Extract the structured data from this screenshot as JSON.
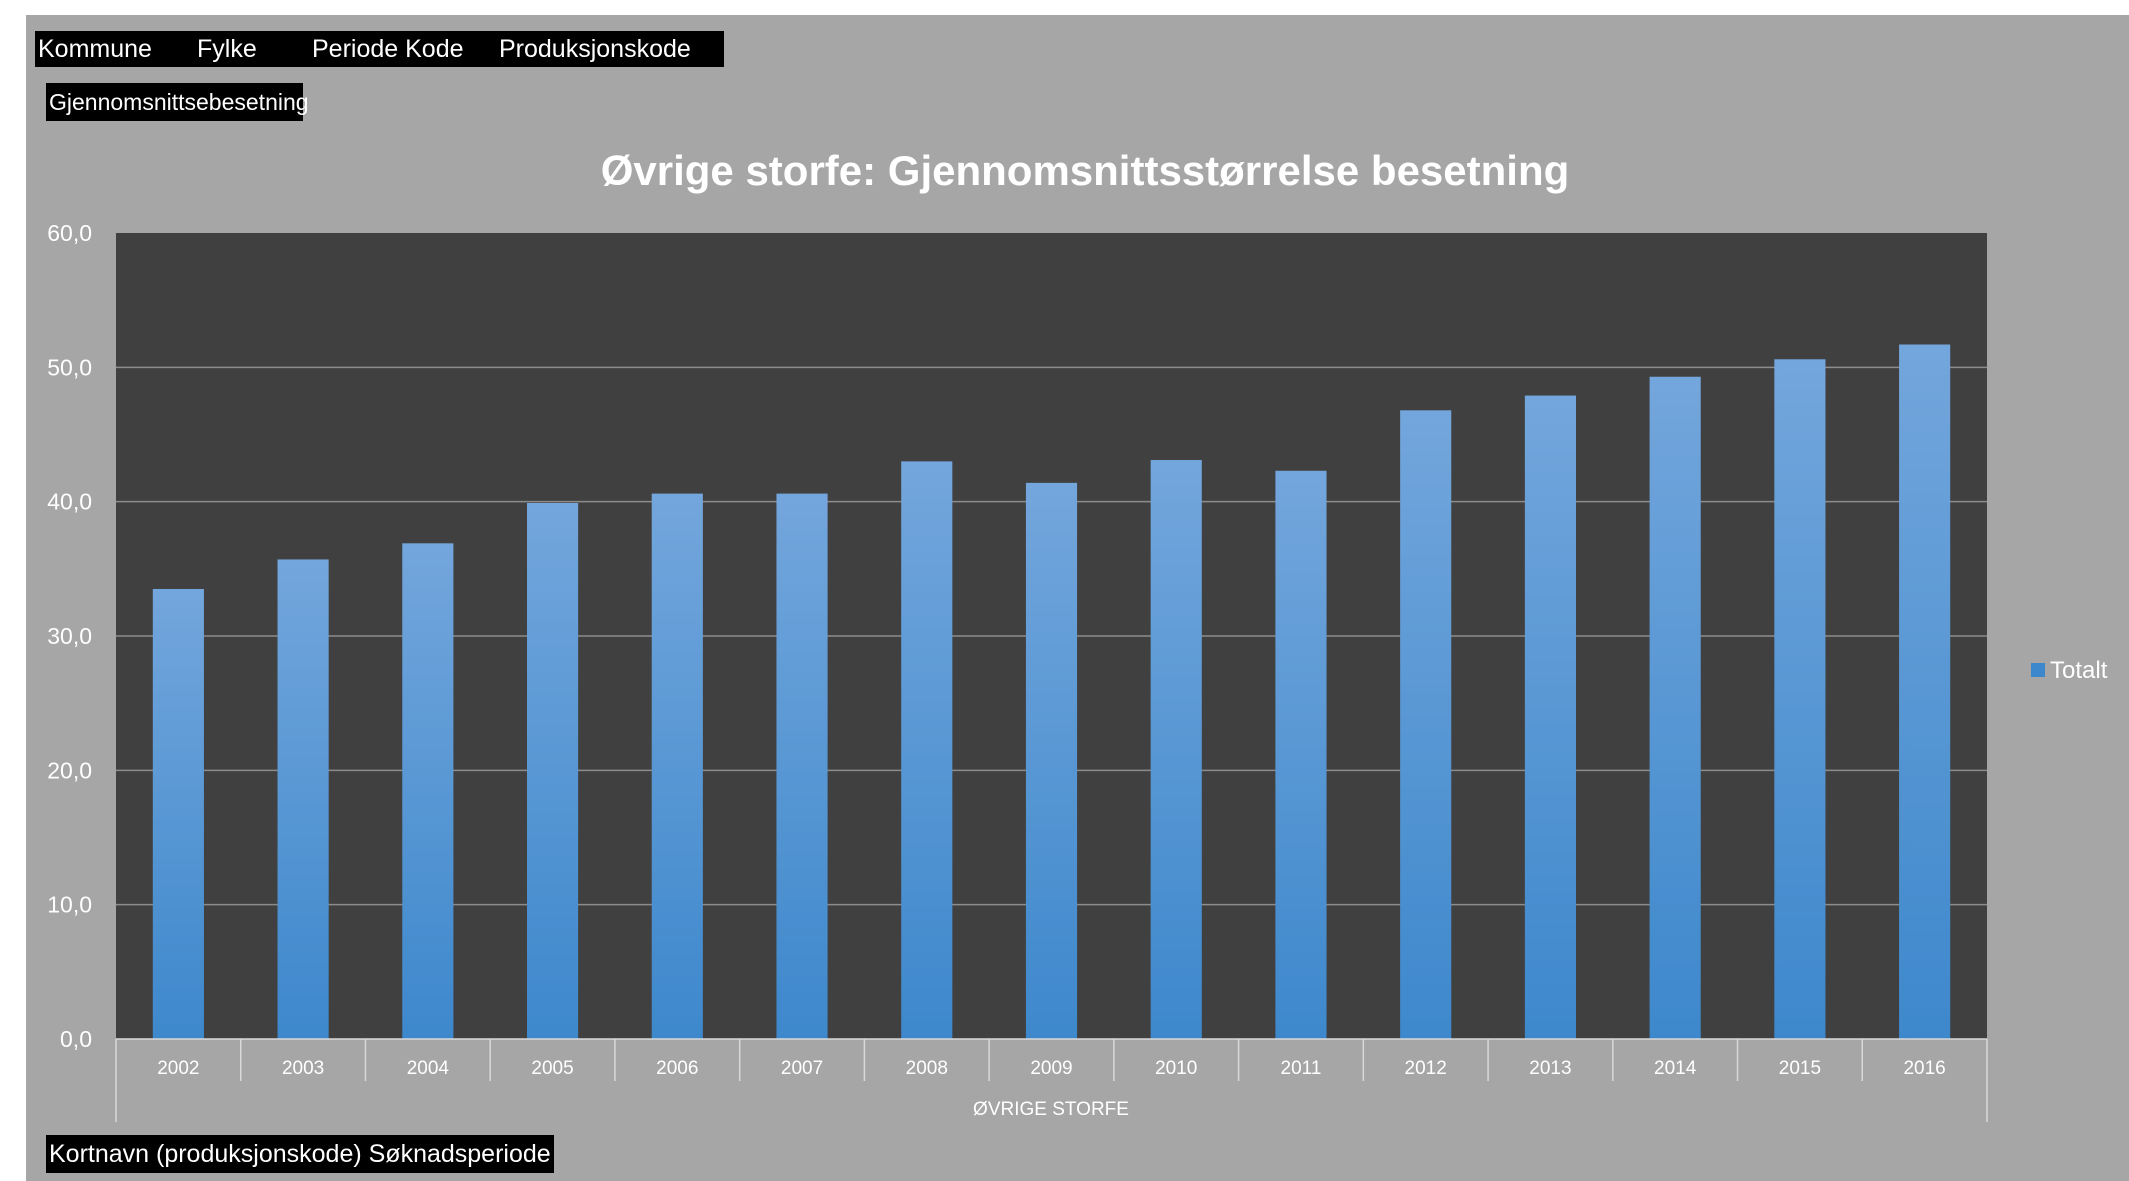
{
  "field_buttons": [
    "Kommune",
    "Fylke",
    "Periode Kode",
    "Produksjonskode"
  ],
  "value_button": "Gjennomsnittsebesetning",
  "axis_button": "Kortnavn (produksjonskode) Søknadsperiode",
  "chart_data": {
    "type": "bar",
    "title": "Øvrige storfe: Gjennomsnittsstørrelse besetning",
    "categories": [
      "2002",
      "2003",
      "2004",
      "2005",
      "2006",
      "2007",
      "2008",
      "2009",
      "2010",
      "2011",
      "2012",
      "2013",
      "2014",
      "2015",
      "2016"
    ],
    "group_label": "ØVRIGE STORFE",
    "series": [
      {
        "name": "Totalt",
        "values": [
          33.5,
          35.7,
          36.9,
          39.9,
          40.6,
          40.6,
          43.0,
          41.4,
          43.1,
          42.3,
          46.8,
          47.9,
          49.3,
          50.6,
          51.7
        ]
      }
    ],
    "ylim": [
      0,
      60
    ],
    "yticks": [
      "0,0",
      "10,0",
      "20,0",
      "30,0",
      "40,0",
      "50,0",
      "60,0"
    ],
    "grid": true,
    "legend": "right",
    "colors": {
      "background": "#a6a6a6",
      "plot_background": "#404040",
      "bar_top": "#73a6dc",
      "bar_bottom": "#3d88cc",
      "text": "#ffffff"
    }
  }
}
